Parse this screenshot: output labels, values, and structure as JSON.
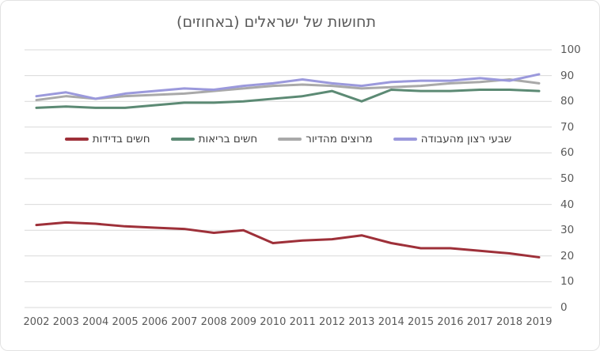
{
  "chart_data": {
    "type": "line",
    "title": "תחושות של ישראלים (באחוזים)",
    "x": [
      "2002",
      "2003",
      "2004",
      "2005",
      "2006",
      "2007",
      "2008",
      "2009",
      "2010",
      "2011",
      "2012",
      "2013",
      "2014",
      "2015",
      "2016",
      "2017",
      "2018",
      "2019"
    ],
    "series": [
      {
        "name": "חשים בדידות",
        "color": "#9e3039",
        "values": [
          32,
          33,
          32.5,
          31.5,
          31,
          30.5,
          29,
          30,
          25,
          26,
          26.5,
          28,
          25,
          23,
          23,
          22,
          21,
          19.5
        ]
      },
      {
        "name": "חשים בריאות",
        "color": "#5c8a74",
        "values": [
          77.5,
          78,
          77.5,
          77.5,
          78.5,
          79.5,
          79.5,
          80,
          81,
          82,
          84,
          80,
          84.5,
          84,
          84,
          84.5,
          84.5,
          84
        ]
      },
      {
        "name": "מרוצים מהדיור",
        "color": "#a9a9a9",
        "values": [
          80.5,
          82,
          81,
          82,
          82.5,
          83,
          84,
          85,
          86,
          86.5,
          86,
          85,
          85.5,
          86,
          87,
          87.5,
          88.5,
          87
        ]
      },
      {
        "name": "שבעי רצון מהעבודה",
        "color": "#9b99dc",
        "values": [
          82,
          83.5,
          81,
          83,
          84,
          85,
          84.5,
          86,
          87,
          88.5,
          87,
          86,
          87.5,
          88,
          88,
          89,
          88,
          90.5
        ]
      }
    ],
    "ylim": [
      0,
      100
    ],
    "ytick_step": 10,
    "yticks": [
      0,
      10,
      20,
      30,
      40,
      50,
      60,
      70,
      80,
      90,
      100
    ],
    "yaxis_side": "right",
    "grid": true,
    "legend_position": "inside-top-center",
    "grid_color": "#d9d9d9",
    "title_color": "#595959",
    "tick_label_color": "#595959",
    "legend_text_color": "#404040"
  }
}
